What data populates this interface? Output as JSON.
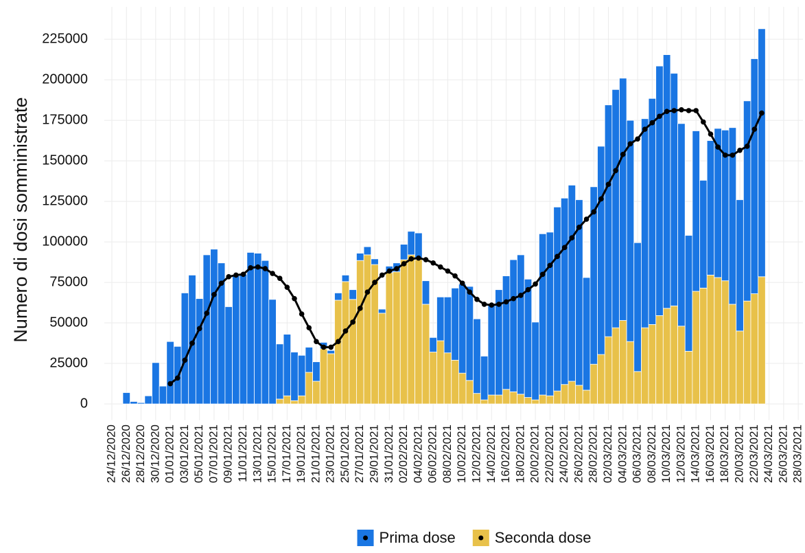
{
  "chart_data": {
    "type": "bar",
    "stacked": true,
    "y_label": "Numero di dosi somministrate",
    "categories": [
      "24/12/2020",
      null,
      "26/12/2020",
      null,
      "28/12/2020",
      null,
      "30/12/2020",
      null,
      "01/01/2021",
      null,
      "03/01/2021",
      null,
      "05/01/2021",
      null,
      "07/01/2021",
      null,
      "09/01/2021",
      null,
      "11/01/2021",
      null,
      "13/01/2021",
      null,
      "15/01/2021",
      null,
      "17/01/2021",
      null,
      "19/01/2021",
      null,
      "21/01/2021",
      null,
      "23/01/2021",
      null,
      "25/01/2021",
      null,
      "27/01/2021",
      null,
      "29/01/2021",
      null,
      "31/01/2021",
      null,
      "02/02/2021",
      null,
      "04/02/2021",
      null,
      "06/02/2021",
      null,
      "08/02/2021",
      null,
      "10/02/2021",
      null,
      "12/02/2021",
      null,
      "14/02/2021",
      null,
      "16/02/2021",
      null,
      "18/02/2021",
      null,
      "20/02/2021",
      null,
      "22/02/2021",
      null,
      "24/02/2021",
      null,
      "26/02/2021",
      null,
      "28/02/2021",
      null,
      "02/03/2021",
      null,
      "04/03/2021",
      null,
      "06/03/2021",
      null,
      "08/03/2021",
      null,
      "10/03/2021",
      null,
      "12/03/2021",
      null,
      "14/03/2021",
      null,
      "16/03/2021",
      null,
      "18/03/2021",
      null,
      "20/03/2021",
      null,
      "22/03/2021",
      null,
      "24/03/2021",
      null,
      "26/03/2021",
      null,
      "28/03/2021"
    ],
    "series": [
      {
        "name": "Prima dose",
        "color": "#1a76e3",
        "values": [
          null,
          null,
          7000,
          1500,
          800,
          5000,
          25500,
          11000,
          38500,
          35500,
          68500,
          79500,
          65000,
          92000,
          95500,
          87000,
          60000,
          79000,
          80000,
          93500,
          93000,
          88500,
          64500,
          34000,
          38000,
          30000,
          25000,
          15500,
          12000,
          4000,
          2000,
          4500,
          4000,
          6000,
          4500,
          5000,
          3500,
          2500,
          4000,
          5500,
          9500,
          14500,
          16500,
          14500,
          9000,
          27000,
          34500,
          44500,
          55000,
          58000,
          46000,
          27000,
          56000,
          65000,
          70000,
          81500,
          86000,
          73000,
          48000,
          99500,
          101000,
          113500,
          115000,
          121000,
          114500,
          69500,
          109500,
          128500,
          143000,
          147000,
          149500,
          136500,
          79500,
          129000,
          139500,
          154000,
          156500,
          143500,
          125000,
          71500,
          99000,
          66500,
          83000,
          92000,
          93000,
          109000,
          81000,
          123500,
          145000,
          153000,
          null,
          null,
          null,
          null,
          null
        ]
      },
      {
        "name": "Seconda dose",
        "color": "#e8c14a",
        "values": [
          null,
          null,
          0,
          0,
          0,
          0,
          0,
          0,
          0,
          0,
          0,
          0,
          0,
          0,
          0,
          0,
          0,
          0,
          0,
          0,
          0,
          0,
          0,
          3000,
          5000,
          2000,
          5000,
          19500,
          14000,
          34000,
          31000,
          64000,
          75500,
          64500,
          88500,
          92000,
          86000,
          56000,
          81000,
          81500,
          89000,
          92000,
          89000,
          61500,
          32000,
          39000,
          31500,
          27000,
          19000,
          14500,
          6500,
          2500,
          5500,
          5500,
          9000,
          7500,
          6000,
          4000,
          2500,
          5500,
          5000,
          8000,
          12000,
          14000,
          11500,
          8500,
          24500,
          30500,
          41500,
          47000,
          51500,
          38500,
          20000,
          47000,
          49000,
          54500,
          59000,
          60500,
          48000,
          32500,
          69500,
          71500,
          79500,
          78000,
          76000,
          61500,
          45000,
          63500,
          68000,
          78500,
          null,
          null,
          null,
          null,
          null
        ]
      }
    ],
    "trend": {
      "type": "line",
      "color": "#000000",
      "values": [
        null,
        null,
        null,
        null,
        null,
        null,
        null,
        null,
        12500,
        16000,
        27000,
        37500,
        46500,
        56000,
        67500,
        74500,
        78500,
        79500,
        80000,
        84000,
        84500,
        83500,
        80500,
        77500,
        72000,
        65000,
        55500,
        47000,
        38500,
        35000,
        35000,
        38500,
        45000,
        50500,
        59000,
        69000,
        75000,
        79500,
        82000,
        83500,
        86500,
        89500,
        90000,
        89000,
        87000,
        84500,
        82000,
        79000,
        74500,
        69000,
        64500,
        61500,
        61000,
        61500,
        63000,
        65000,
        67000,
        70500,
        74000,
        80000,
        85500,
        91000,
        96500,
        102500,
        109000,
        114000,
        118500,
        126500,
        135500,
        144000,
        154000,
        160500,
        163500,
        169500,
        173500,
        177500,
        180500,
        181000,
        181500,
        181000,
        181000,
        174000,
        166500,
        158500,
        153500,
        153500,
        156500,
        159000,
        169500,
        179500,
        null,
        null,
        null,
        null,
        null
      ]
    },
    "ylim": [
      -10000,
      245000
    ],
    "yticks": [
      0,
      25000,
      50000,
      75000,
      100000,
      125000,
      150000,
      175000,
      200000,
      225000
    ],
    "grid": true,
    "legend": "bottom"
  }
}
